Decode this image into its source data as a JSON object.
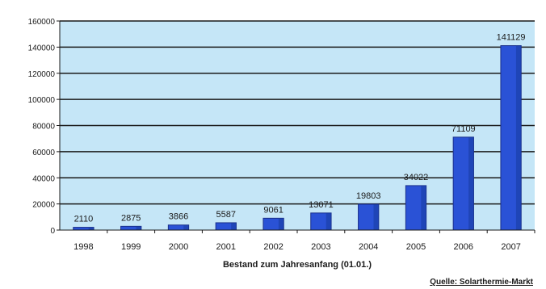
{
  "chart_data": {
    "type": "bar",
    "title": "",
    "xlabel": "Bestand zum Jahresanfang (01.01.)",
    "ylabel": "",
    "categories": [
      "1998",
      "1999",
      "2000",
      "2001",
      "2002",
      "2003",
      "2004",
      "2005",
      "2006",
      "2007"
    ],
    "values": [
      2110,
      2875,
      3866,
      5587,
      9061,
      13071,
      19803,
      34022,
      71109,
      141129
    ],
    "value_labels": [
      "2110",
      "2875",
      "3866",
      "5587",
      "9061",
      "13071",
      "19803",
      "34022",
      "71109",
      "141129"
    ],
    "ylim": [
      0,
      160000
    ],
    "yticks": [
      0,
      20000,
      40000,
      60000,
      80000,
      100000,
      120000,
      140000,
      160000
    ],
    "ytick_labels": [
      "0",
      "20000",
      "40000",
      "60000",
      "80000",
      "100000",
      "120000",
      "140000",
      "160000"
    ],
    "grid": true,
    "legend": "none"
  },
  "source": "Quelle: Solarthermie-Markt",
  "colors": {
    "plot_background": "#c5e6f7",
    "bar_fill": "#2a52d6",
    "bar_edge": "#1a2f8a",
    "bar_shade": "#163a9e",
    "grid": "#1a1a1a",
    "text": "#1a1a1a"
  }
}
